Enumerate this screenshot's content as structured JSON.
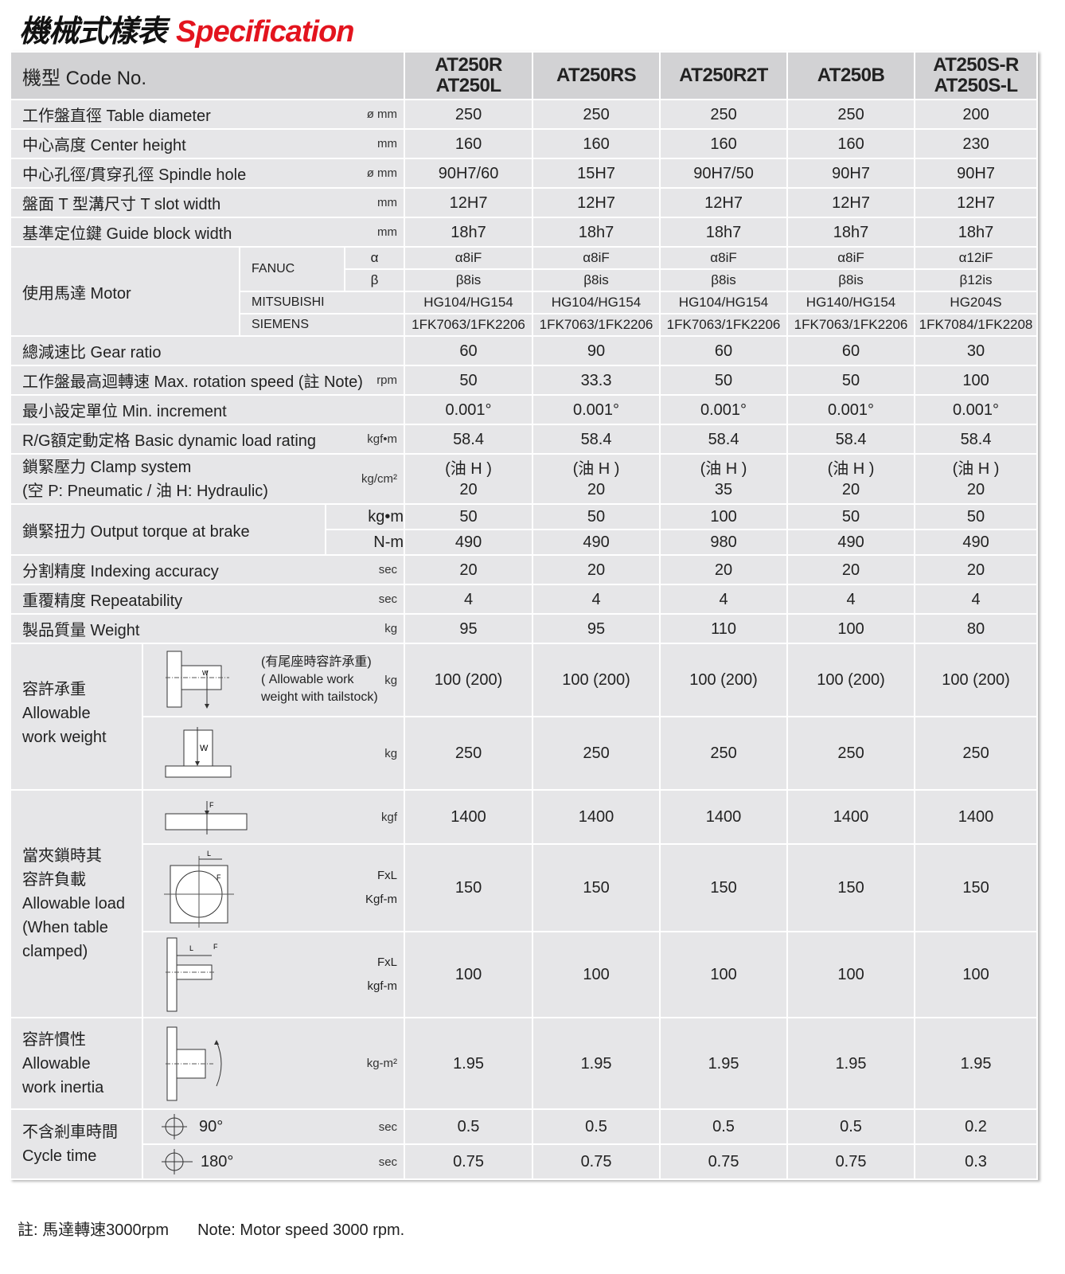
{
  "title": {
    "cn": "機械式樣表",
    "en": "Specification"
  },
  "header": {
    "label": "機型 Code No.",
    "models": [
      "AT250R\nAT250L",
      "AT250RS",
      "AT250R2T",
      "AT250B",
      "AT250S-R\nAT250S-L"
    ]
  },
  "rows": [
    {
      "label": "工作盤直徑 Table diameter",
      "unit": "ø mm",
      "values": [
        "250",
        "250",
        "250",
        "250",
        "200"
      ]
    },
    {
      "label": "中心高度 Center height",
      "unit": "mm",
      "values": [
        "160",
        "160",
        "160",
        "160",
        "230"
      ]
    },
    {
      "label": "中心孔徑/貫穿孔徑 Spindle hole",
      "unit": "ø mm",
      "values": [
        "90H7/60",
        "15H7",
        "90H7/50",
        "90H7",
        "90H7"
      ]
    },
    {
      "label": "盤面 T 型溝尺寸 T slot width",
      "unit": "mm",
      "values": [
        "12H7",
        "12H7",
        "12H7",
        "12H7",
        "12H7"
      ]
    },
    {
      "label": "基準定位鍵 Guide block width",
      "unit": "mm",
      "values": [
        "18h7",
        "18h7",
        "18h7",
        "18h7",
        "18h7"
      ]
    },
    {
      "label": "總減速比 Gear ratio",
      "unit": "",
      "values": [
        "60",
        "90",
        "60",
        "60",
        "30"
      ]
    },
    {
      "label": "工作盤最高迴轉速 Max. rotation speed (註 Note)",
      "unit": "rpm",
      "values": [
        "50",
        "33.3",
        "50",
        "50",
        "100"
      ]
    },
    {
      "label": "最小設定單位 Min. increment",
      "unit": "",
      "values": [
        "0.001°",
        "0.001°",
        "0.001°",
        "0.001°",
        "0.001°"
      ]
    },
    {
      "label": "R/G額定動定格 Basic dynamic load rating",
      "unit": "kgf•m",
      "values": [
        "58.4",
        "58.4",
        "58.4",
        "58.4",
        "58.4"
      ]
    },
    {
      "label": "分割精度 Indexing accuracy",
      "unit": "sec",
      "values": [
        "20",
        "20",
        "20",
        "20",
        "20"
      ]
    },
    {
      "label": "重覆精度 Repeatability",
      "unit": "sec",
      "values": [
        "4",
        "4",
        "4",
        "4",
        "4"
      ]
    },
    {
      "label": "製品質量 Weight",
      "unit": "kg",
      "values": [
        "95",
        "95",
        "110",
        "100",
        "80"
      ]
    }
  ],
  "motor": {
    "label": "使用馬達 Motor",
    "fanuc": "FANUC",
    "alpha": {
      "label": "α",
      "values": [
        "α8iF",
        "α8iF",
        "α8iF",
        "α8iF",
        "α12iF"
      ]
    },
    "beta": {
      "label": "β",
      "values": [
        "β8is",
        "β8is",
        "β8is",
        "β8is",
        "β12is"
      ]
    },
    "mitsubishi": {
      "label": "MITSUBISHI",
      "values": [
        "HG104/HG154",
        "HG104/HG154",
        "HG104/HG154",
        "HG140/HG154",
        "HG204S"
      ]
    },
    "siemens": {
      "label": "SIEMENS",
      "values": [
        "1FK7063/1FK2206",
        "1FK7063/1FK2206",
        "1FK7063/1FK2206",
        "1FK7063/1FK2206",
        "1FK7084/1FK2208"
      ]
    }
  },
  "clamp": {
    "label1": "鎖緊壓力  Clamp system",
    "label2": "(空 P: Pneumatic / 油 H: Hydraulic)",
    "unit": "kg/cm²",
    "values": [
      "(油 H )\n20",
      "(油 H )\n20",
      "(油 H )\n35",
      "(油 H )\n20",
      "(油 H )\n20"
    ]
  },
  "torque": {
    "label": "鎖緊扭力 Output torque at brake",
    "rows": [
      {
        "unit": "kg•m",
        "values": [
          "50",
          "50",
          "100",
          "50",
          "50"
        ]
      },
      {
        "unit": "N-m",
        "values": [
          "490",
          "490",
          "980",
          "490",
          "490"
        ]
      }
    ]
  },
  "work_weight": {
    "label": "容許承重\nAllowable\nwork weight",
    "rows": [
      {
        "note": "(有尾座時容許承重)\n( Allowable work\n weight with tailstock)",
        "unit": "kg",
        "values": [
          "100 (200)",
          "100 (200)",
          "100 (200)",
          "100 (200)",
          "100 (200)"
        ]
      },
      {
        "unit": "kg",
        "values": [
          "250",
          "250",
          "250",
          "250",
          "250"
        ]
      }
    ]
  },
  "load": {
    "label": "當夾鎖時其\n容許負載\nAllowable load\n(When table\nclamped)",
    "rows": [
      {
        "unit": "kgf",
        "values": [
          "1400",
          "1400",
          "1400",
          "1400",
          "1400"
        ]
      },
      {
        "unit": "FxL\nKgf-m",
        "values": [
          "150",
          "150",
          "150",
          "150",
          "150"
        ]
      },
      {
        "unit": "FxL\nkgf-m",
        "values": [
          "100",
          "100",
          "100",
          "100",
          "100"
        ]
      }
    ]
  },
  "inertia": {
    "label": "容許慣性\nAllowable\nwork inertia",
    "unit": "kg-m²",
    "values": [
      "1.95",
      "1.95",
      "1.95",
      "1.95",
      "1.95"
    ]
  },
  "cycle": {
    "label": "不含剎車時間\nCycle time",
    "rows": [
      {
        "angle": "90°",
        "unit": "sec",
        "values": [
          "0.5",
          "0.5",
          "0.5",
          "0.5",
          "0.2"
        ]
      },
      {
        "angle": "180°",
        "unit": "sec",
        "values": [
          "0.75",
          "0.75",
          "0.75",
          "0.75",
          "0.3"
        ]
      }
    ]
  },
  "note": {
    "cn": "註: 馬達轉速3000rpm",
    "en": "Note: Motor speed 3000 rpm."
  }
}
